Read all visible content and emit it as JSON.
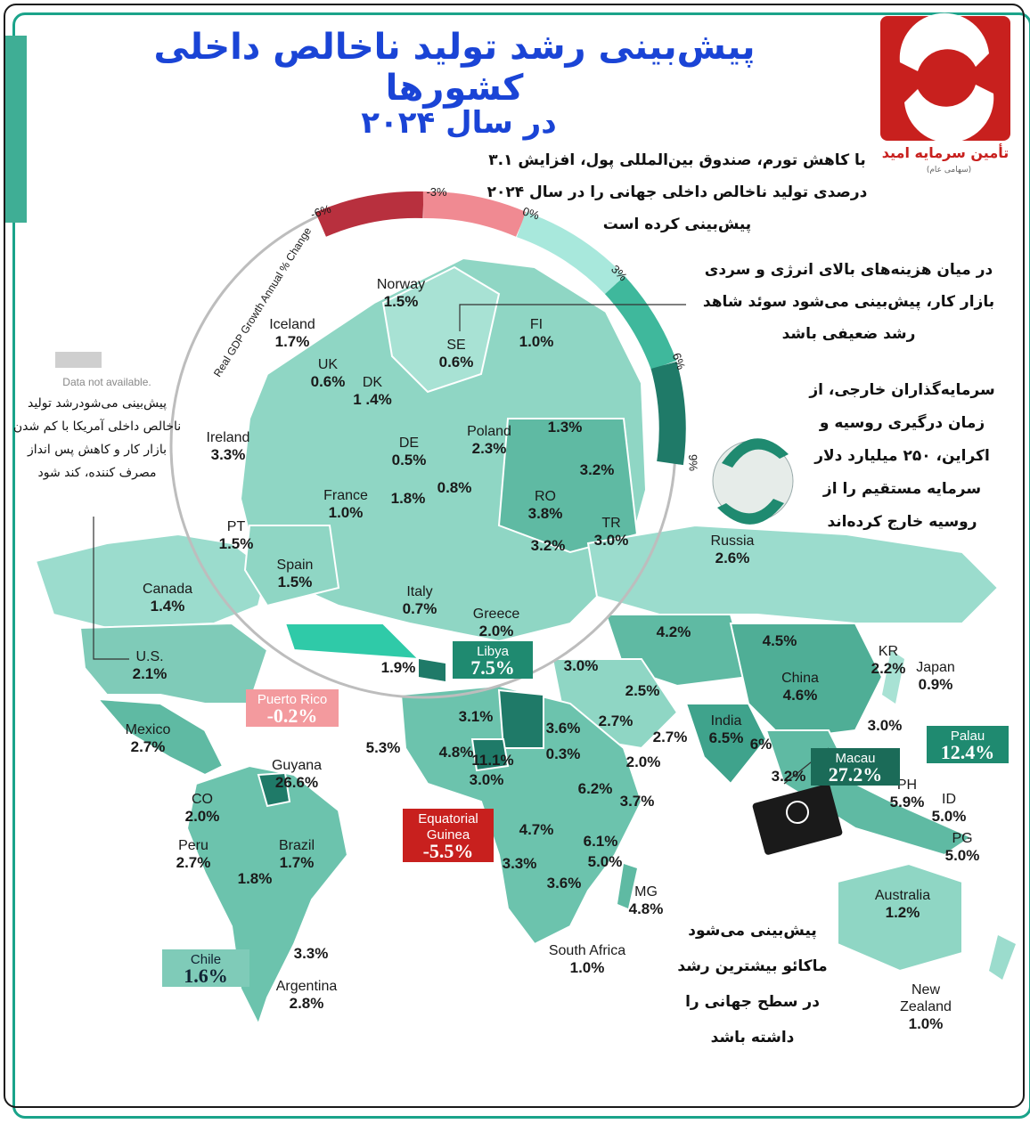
{
  "header": {
    "title": "پیش‌بینی رشد تولید ناخالص داخلی کشورها",
    "subtitle": "در سال ۲۰۲۴",
    "brand": {
      "name": "تأمین سرمایه امید",
      "tag": "(سهامی عام)"
    }
  },
  "notes": {
    "imf": "با کاهش تورم، صندوق بین‌المللی پول، افزایش ۳.۱ درصدی تولید ناخالص داخلی جهانی را در سال ۲۰۲۴ پیش‌بینی کرده است",
    "sweden": "در میان هزینه‌های بالای انرژی و سردی بازار کار، پیش‌بینی می‌شود سوئد شاهد رشد ضعیفی باشد",
    "russia": "سرمایه‌گذاران خارجی، از زمان درگیری روسیه و اکراین، ۲۵۰ میلیارد دلار سرمایه مستقیم را از روسیه خارج کرده‌اند",
    "usa": "پیش‌بینی می‌شودرشد تولید ناخالص داخلی آمریکا با کم شدن بازار کار و کاهش پس انداز مصرف کننده، کند شود",
    "macau": "پیش‌بینی می‌شود ماکائو بیشترین رشد در سطح جهانی را داشته باشد"
  },
  "legend": {
    "axis_title": "Real GDP Growth Annual % Change",
    "ticks": [
      "-6%",
      "-3%",
      "0%",
      "3%",
      "6%",
      "9%"
    ],
    "no_data": "Data not available.",
    "colors": {
      "neg_dark": "#b8303e",
      "neg_light": "#f08a92",
      "pos_light": "#a8e8dc",
      "pos_mid": "#3fb89c",
      "pos_dark": "#1f7a68"
    }
  },
  "europe": [
    {
      "name": "Norway",
      "value": "1.5%"
    },
    {
      "name": "Iceland",
      "value": "1.7%"
    },
    {
      "name": "SE",
      "value": "0.6%"
    },
    {
      "name": "FI",
      "value": "1.0%"
    },
    {
      "name": "UK",
      "value": "0.6%"
    },
    {
      "name": "DK",
      "value": "1 .4%"
    },
    {
      "name": "Ireland",
      "value": "3.3%"
    },
    {
      "name": "DE",
      "value": "0.5%"
    },
    {
      "name": "Poland",
      "value": "2.3%"
    },
    {
      "name": "",
      "value": "1.3%"
    },
    {
      "name": "",
      "value": "3.2%"
    },
    {
      "name": "France",
      "value": "1.0%"
    },
    {
      "name": "",
      "value": "1.8%"
    },
    {
      "name": "",
      "value": "0.8%"
    },
    {
      "name": "RO",
      "value": "3.8%"
    },
    {
      "name": "PT",
      "value": "1.5%"
    },
    {
      "name": "",
      "value": "3.2%"
    },
    {
      "name": "TR",
      "value": "3.0%"
    },
    {
      "name": "Spain",
      "value": "1.5%"
    },
    {
      "name": "Italy",
      "value": "0.7%"
    },
    {
      "name": "Greece",
      "value": "2.0%"
    },
    {
      "name": "",
      "value": "1.9%"
    }
  ],
  "world": [
    {
      "name": "Russia",
      "value": "2.6%"
    },
    {
      "name": "Canada",
      "value": "1.4%"
    },
    {
      "name": "U.S.",
      "value": "2.1%"
    },
    {
      "name": "",
      "value": "4.2%"
    },
    {
      "name": "",
      "value": "4.5%"
    },
    {
      "name": "KR",
      "value": "2.2%"
    },
    {
      "name": "Japan",
      "value": "0.9%"
    },
    {
      "name": "China",
      "value": "4.6%"
    },
    {
      "name": "",
      "value": "3.0%"
    },
    {
      "name": "",
      "value": "2.5%"
    },
    {
      "name": "",
      "value": "2.7%"
    },
    {
      "name": "",
      "value": "2.7%"
    },
    {
      "name": "India",
      "value": "6.5%"
    },
    {
      "name": "",
      "value": "6%"
    },
    {
      "name": "",
      "value": "3.0%"
    },
    {
      "name": "Mexico",
      "value": "2.7%"
    },
    {
      "name": "",
      "value": "3.1%"
    },
    {
      "name": "",
      "value": "3.6%"
    },
    {
      "name": "",
      "value": "5.3%"
    },
    {
      "name": "",
      "value": "4.8%"
    },
    {
      "name": "",
      "value": "11.1%"
    },
    {
      "name": "",
      "value": "0.3%"
    },
    {
      "name": "",
      "value": "2.0%"
    },
    {
      "name": "",
      "value": "3.0%"
    },
    {
      "name": "",
      "value": "6.2%"
    },
    {
      "name": "Guyana",
      "value": "26.6%"
    },
    {
      "name": "CO",
      "value": "2.0%"
    },
    {
      "name": "",
      "value": "3.7%"
    },
    {
      "name": "",
      "value": "3.2%"
    },
    {
      "name": "PH",
      "value": "5.9%"
    },
    {
      "name": "ID",
      "value": "5.0%"
    },
    {
      "name": "PG",
      "value": "5.0%"
    },
    {
      "name": "Peru",
      "value": "2.7%"
    },
    {
      "name": "Brazil",
      "value": "1.7%"
    },
    {
      "name": "",
      "value": "4.7%"
    },
    {
      "name": "",
      "value": "6.1%"
    },
    {
      "name": "",
      "value": "5.0%"
    },
    {
      "name": "",
      "value": "1.8%"
    },
    {
      "name": "",
      "value": "3.3%"
    },
    {
      "name": "",
      "value": "3.6%"
    },
    {
      "name": "MG",
      "value": "4.8%"
    },
    {
      "name": "Australia",
      "value": "1.2%"
    },
    {
      "name": "",
      "value": "3.3%"
    },
    {
      "name": "South Africa",
      "value": "1.0%"
    },
    {
      "name": "Argentina",
      "value": "2.8%"
    },
    {
      "name": "New Zealand",
      "value": "1.0%"
    }
  ],
  "callouts": [
    {
      "name": "Libya",
      "value": "7.5%"
    },
    {
      "name": "Puerto Rico",
      "value": "-0.2%"
    },
    {
      "name": "Macau",
      "value": "27.2%"
    },
    {
      "name": "Palau",
      "value": "12.4%"
    },
    {
      "name": "Equatorial Guinea",
      "value": "-5.5%"
    },
    {
      "name": "Chile",
      "value": "1.6%"
    }
  ]
}
